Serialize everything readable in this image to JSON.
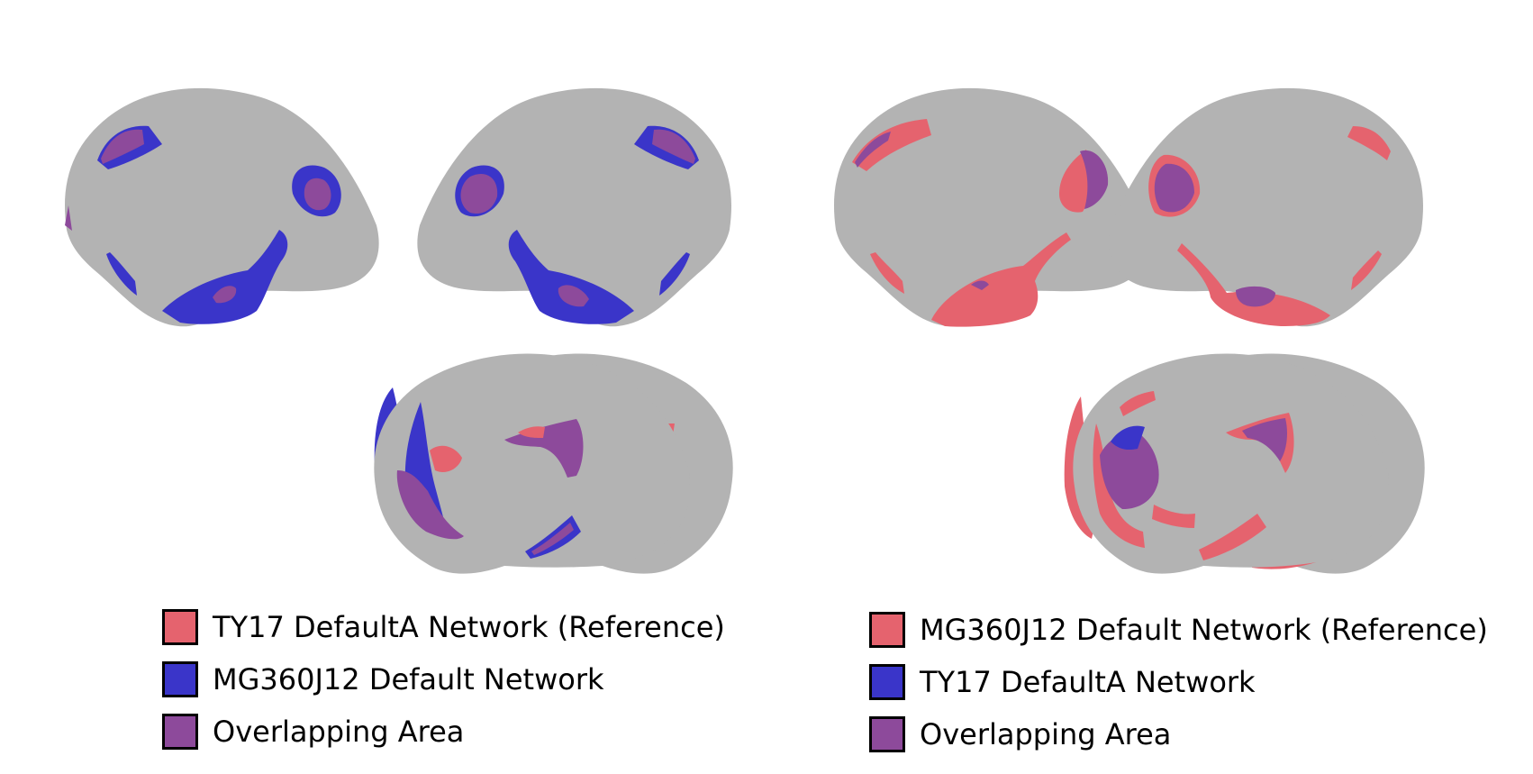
{
  "colors": {
    "brain": "#b3b3b3",
    "reference": "#e5636e",
    "comparison": "#3a35c9",
    "overlap": "#8d4a9b"
  },
  "panels": [
    {
      "id": "left",
      "legend": [
        {
          "label": "TY17 DefaultA Network (Reference)",
          "color": "#e5636e"
        },
        {
          "label": "MG360J12 Default Network",
          "color": "#3a35c9"
        },
        {
          "label": "Overlapping Area",
          "color": "#8d4a9b"
        }
      ]
    },
    {
      "id": "right",
      "legend": [
        {
          "label": "MG360J12 Default Network (Reference)",
          "color": "#e5636e"
        },
        {
          "label": "TY17 DefaultA Network",
          "color": "#3a35c9"
        },
        {
          "label": "Overlapping Area",
          "color": "#8d4a9b"
        }
      ]
    }
  ]
}
